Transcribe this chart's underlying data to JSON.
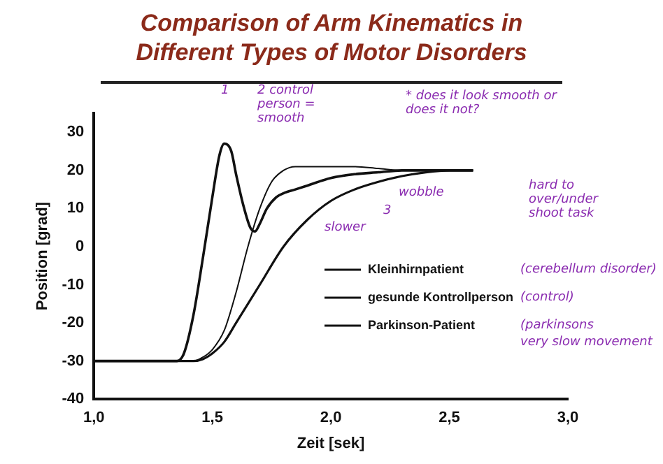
{
  "chart_data": {
    "type": "line",
    "title": "Comparison of Arm Kinematics in Different Types of Motor Disorders",
    "xlabel": "Zeit [sek]",
    "ylabel": "Position [grad]",
    "xlim": [
      1,
      3
    ],
    "xticks": [
      {
        "value": 1,
        "label": "1,0"
      },
      {
        "value": 1.5,
        "label": "1,5"
      },
      {
        "value": 2,
        "label": "2,0"
      },
      {
        "value": 2.5,
        "label": "2,5"
      },
      {
        "value": 3,
        "label": "3,0"
      }
    ],
    "ylim": [
      -40,
      35
    ],
    "yticks": [
      -40,
      -30,
      -20,
      -10,
      0,
      10,
      20,
      30
    ],
    "grid": false,
    "legend": "bottom right",
    "marker": "none",
    "line_style": "solid",
    "series": [
      {
        "name": "Kleinhirnpatient",
        "color": "#111111",
        "x": [
          1,
          1.35,
          1.38,
          1.42,
          1.46,
          1.5,
          1.53,
          1.55,
          1.58,
          1.6,
          1.63,
          1.66,
          1.68,
          1.7,
          1.73,
          1.77,
          1.8,
          1.85,
          1.9,
          2,
          2.1,
          2.2,
          2.3,
          2.4,
          2.6
        ],
        "values": [
          -30,
          -30,
          -28,
          -18,
          -3,
          13,
          24,
          27,
          25,
          19,
          11,
          5,
          4,
          6,
          10,
          13,
          14,
          15,
          16,
          18,
          19,
          19.5,
          20,
          20,
          20
        ]
      },
      {
        "name": "gesunde Kontrollperson",
        "color": "#111111",
        "x": [
          1,
          1.42,
          1.46,
          1.5,
          1.55,
          1.6,
          1.65,
          1.7,
          1.75,
          1.8,
          1.85,
          1.9,
          2,
          2.1,
          2.2,
          2.3,
          2.4,
          2.6
        ],
        "values": [
          -30,
          -30,
          -29,
          -27,
          -22,
          -12,
          0,
          10,
          17,
          20,
          21,
          21,
          21,
          21,
          20.5,
          20,
          20,
          20
        ]
      },
      {
        "name": "Parkinson-Patient",
        "color": "#111111",
        "x": [
          1,
          1.42,
          1.46,
          1.5,
          1.55,
          1.6,
          1.7,
          1.8,
          1.9,
          2,
          2.1,
          2.2,
          2.3,
          2.4,
          2.5,
          2.6
        ],
        "values": [
          -30,
          -30,
          -29.5,
          -28,
          -25,
          -20,
          -10,
          0,
          7,
          12,
          15,
          17,
          18.5,
          19.5,
          20,
          20
        ]
      }
    ],
    "annotations": [
      "1",
      "2 control person = smooth",
      "* does it look smooth or does it not?",
      "3",
      "slower",
      "wobble",
      "hard to over/under shoot task",
      "(cerebellum disorder)",
      "(control)",
      "(parkinsons",
      "very slow movement"
    ]
  }
}
